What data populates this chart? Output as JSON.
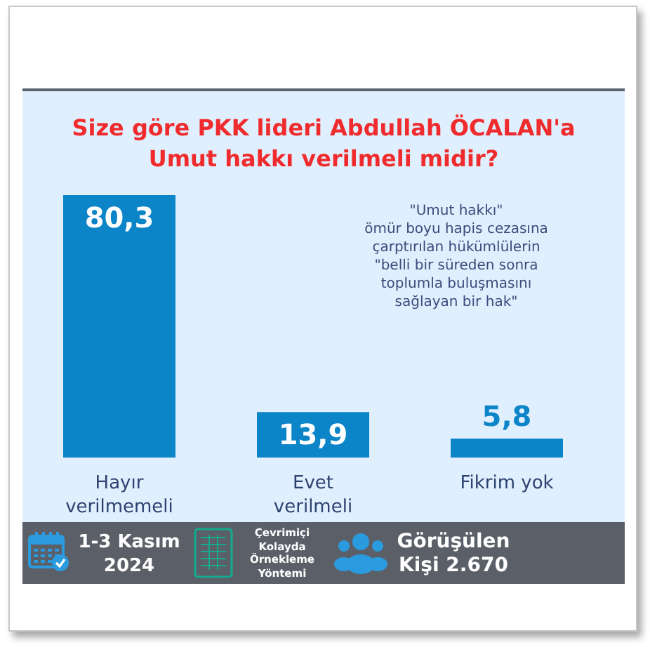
{
  "chart_data": {
    "type": "bar",
    "title": "Size göre PKK lideri Abdullah ÖCALAN'a\nUmut hakkı verilmeli midir?",
    "categories": [
      "Hayır\nverilmemeli",
      "Evet\nverilmeli",
      "Fikrim yok"
    ],
    "values": [
      80.3,
      13.9,
      5.8
    ],
    "color": "#0b84c8",
    "value_labels": [
      "80,3",
      "13,9",
      "5,8"
    ],
    "annotations": [
      "\"Umut hakkı\"\nömür boyu hapis cezasına\nçarptırılan hükümlülerin\n\"belli bir süreden sonra\ntoplumla buluşmasını\nsağlayan bir hak\"",
      "1-3 Kasım\n2024",
      "Çevrimiçi\nKolayda\nÖrnekleme\nYöntemi",
      "Görüşülen\nKişi 2.670"
    ]
  }
}
